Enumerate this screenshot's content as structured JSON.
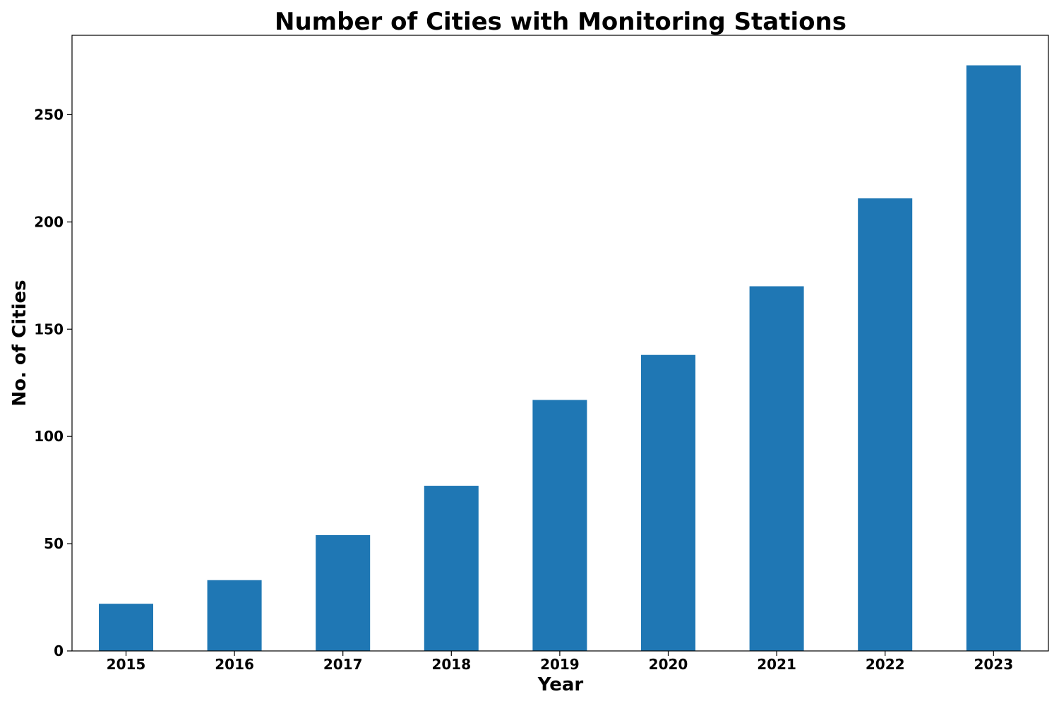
{
  "chart_data": {
    "type": "bar",
    "title": "Number of Cities with Monitoring Stations",
    "xlabel": "Year",
    "ylabel": "No. of Cities",
    "categories": [
      "2015",
      "2016",
      "2017",
      "2018",
      "2019",
      "2020",
      "2021",
      "2022",
      "2023"
    ],
    "values": [
      22,
      33,
      54,
      77,
      117,
      138,
      170,
      211,
      273
    ],
    "ylim": [
      0,
      287
    ],
    "yticks": [
      0,
      50,
      100,
      150,
      200,
      250
    ],
    "bar_color": "#1f77b4",
    "grid": false,
    "legend": "none"
  }
}
